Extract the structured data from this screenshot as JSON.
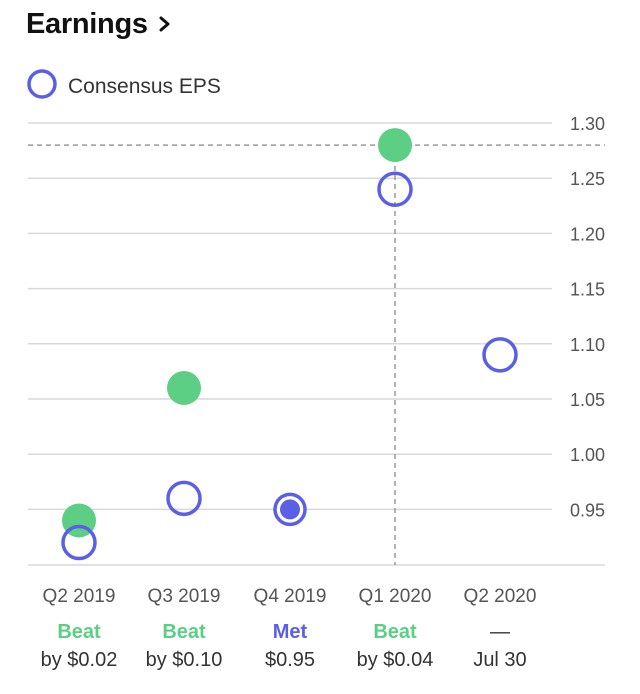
{
  "header": {
    "title": "Earnings"
  },
  "legend": {
    "label": "Consensus EPS"
  },
  "colors": {
    "consensus": "#5b5fe6",
    "beat": "#5ccf84",
    "met": "#5b5fe6",
    "grid": "#d9d9d9",
    "axis_text": "#555555",
    "crosshair": "#999999"
  },
  "chart_data": {
    "type": "scatter",
    "ylim": [
      0.9,
      1.3
    ],
    "yticks": [
      "1.30",
      "1.25",
      "1.20",
      "1.15",
      "1.10",
      "1.05",
      "1.00",
      "0.95"
    ],
    "categories": [
      "Q2 2019",
      "Q3 2019",
      "Q4 2019",
      "Q1 2020",
      "Q2 2020"
    ],
    "series": [
      {
        "name": "Consensus EPS",
        "values": [
          0.92,
          0.96,
          0.95,
          1.24,
          1.09
        ]
      },
      {
        "values": [
          0.94,
          1.06,
          0.95,
          1.28,
          null
        ]
      }
    ],
    "results": [
      {
        "status": "Beat",
        "detail": "by $0.02",
        "kind": "beat"
      },
      {
        "status": "Beat",
        "detail": "by $0.10",
        "kind": "beat"
      },
      {
        "status": "Met",
        "detail": "$0.95",
        "kind": "met"
      },
      {
        "status": "Beat",
        "detail": "by $0.04",
        "kind": "beat"
      },
      {
        "status": "—",
        "detail": "Jul 30",
        "kind": "upcoming"
      }
    ],
    "highlight": {
      "category_index": 3,
      "y": 1.28
    },
    "legend_position": "top-left",
    "grid": true
  }
}
